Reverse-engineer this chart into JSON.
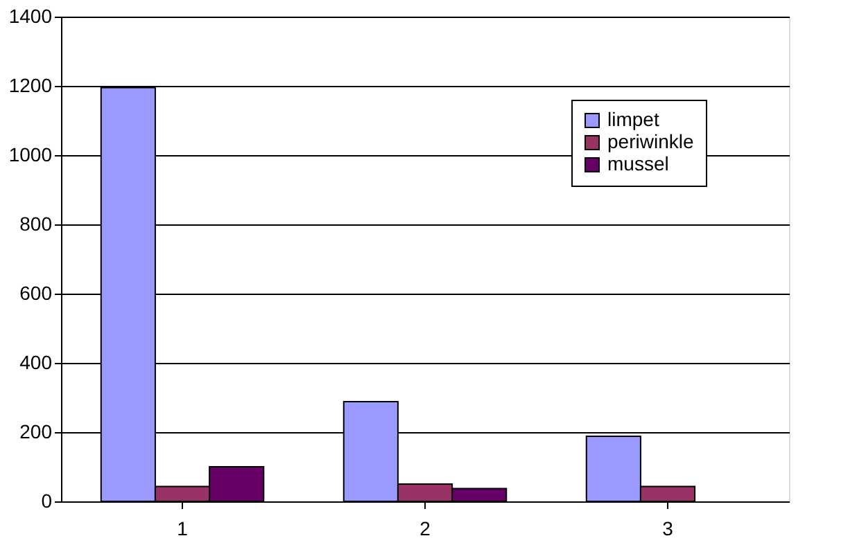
{
  "chart_data": {
    "type": "bar",
    "categories": [
      "1",
      "2",
      "3"
    ],
    "series": [
      {
        "name": "limpet",
        "color": "#9999ff",
        "values": [
          1195,
          288,
          188
        ]
      },
      {
        "name": "periwinkle",
        "color": "#993366",
        "values": [
          43,
          50,
          43
        ]
      },
      {
        "name": "mussel",
        "color": "#660066",
        "values": [
          100,
          37,
          null
        ]
      }
    ],
    "ylim": [
      0,
      1400
    ],
    "yticks": [
      0,
      200,
      400,
      600,
      800,
      1000,
      1200,
      1400
    ],
    "grid": "y",
    "legend": "top right"
  }
}
